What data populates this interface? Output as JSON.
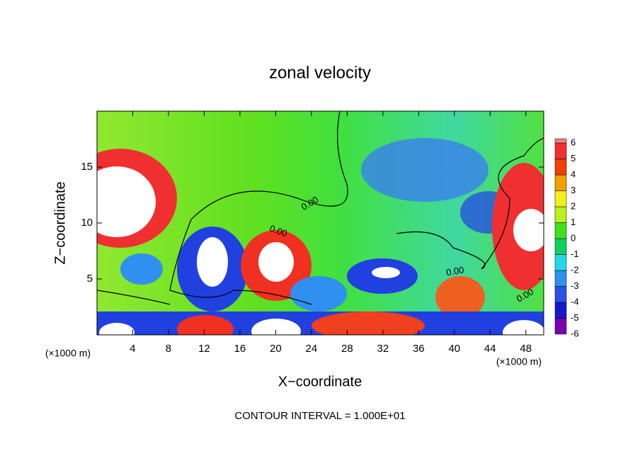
{
  "chart_data": {
    "type": "contour",
    "title": "zonal velocity",
    "x_label": "X−coordinate",
    "y_label": "Z−coordinate",
    "x_unit": "(×1000 m)",
    "x_unit_right": "(×1000 m)",
    "footer": "CONTOUR INTERVAL = 1.000E+01",
    "xlim": [
      0,
      50
    ],
    "xticks": [
      4,
      8,
      12,
      16,
      20,
      24,
      28,
      32,
      36,
      40,
      44,
      48
    ],
    "ylim": [
      0,
      20
    ],
    "yticks": [
      5,
      10,
      15
    ],
    "contour_labels": [
      "0.00",
      "0.00",
      "0.00",
      "0.00"
    ],
    "colorbar": {
      "levels": [
        -6,
        -5,
        -4,
        -3,
        -2,
        -1,
        0,
        1,
        2,
        3,
        4,
        5,
        6
      ],
      "colors": [
        "#7a00b0",
        "#1818c8",
        "#2a50e8",
        "#2f90f0",
        "#22d8e8",
        "#10d060",
        "#40e020",
        "#b8f020",
        "#f0f020",
        "#f0a000",
        "#f04000",
        "#f03030",
        "#f08080"
      ]
    }
  }
}
